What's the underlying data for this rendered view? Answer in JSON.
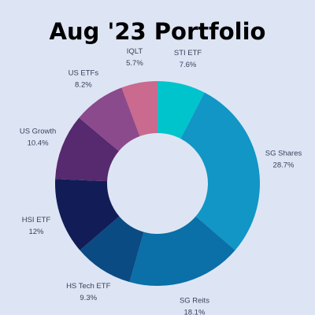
{
  "chart_data": {
    "type": "donut",
    "title": "Aug '23 Portfolio",
    "categories": [
      "STI ETF",
      "SG Shares",
      "SG Reits",
      "HS Tech ETF",
      "HSI ETF",
      "US Growth",
      "US ETFs",
      "IQLT"
    ],
    "values": [
      7.6,
      28.7,
      18.1,
      9.3,
      12,
      10.4,
      8.2,
      5.7
    ],
    "value_labels": [
      "7.6%",
      "28.7%",
      "18.1%",
      "9.3%",
      "12%",
      "10.4%",
      "8.2%",
      "5.7%"
    ],
    "colors": [
      "#00c4cc",
      "#1196c6",
      "#0b6fa8",
      "#0a4b84",
      "#121c57",
      "#57296f",
      "#8b4a8b",
      "#c96a8e"
    ]
  }
}
